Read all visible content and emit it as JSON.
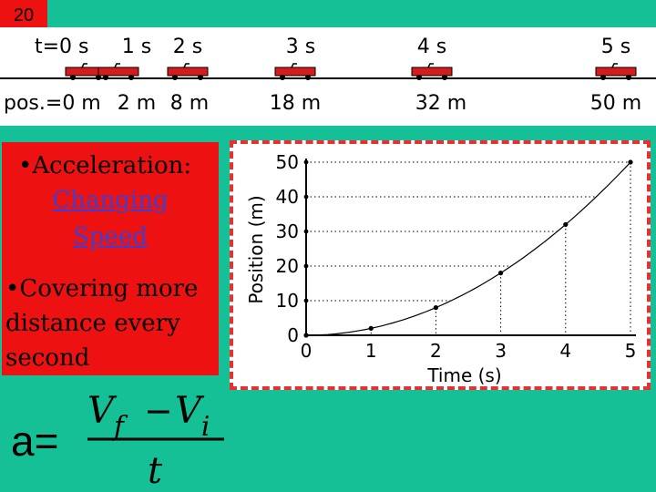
{
  "slide_number": "20",
  "top_strip": {
    "time_labels": [
      "t=0 s",
      "1 s",
      "2 s",
      "3 s",
      "4 s",
      "5 s"
    ],
    "position_labels": [
      "pos.=0 m",
      "2 m",
      "8 m",
      "18 m",
      "32 m",
      "50 m"
    ],
    "car_color": "#d41c1c"
  },
  "left_box": {
    "bullet_1_marker": "•",
    "bullet_1_text": "Acceleration:",
    "link_line_1": "Changing",
    "link_line_2": "Speed",
    "bullet_2_marker": "•",
    "bullet_2_text": "Covering more distance every second"
  },
  "chart_data": {
    "type": "scatter",
    "title": "",
    "xlabel": "Time (s)",
    "ylabel": "Position (m)",
    "x_ticks": [
      "0",
      "1",
      "2",
      "3",
      "4",
      "5"
    ],
    "y_ticks": [
      "0",
      "10",
      "20",
      "30",
      "40",
      "50"
    ],
    "xlim": [
      0,
      5
    ],
    "ylim": [
      0,
      50
    ],
    "x": [
      0,
      1,
      2,
      3,
      4,
      5
    ],
    "y": [
      0,
      2,
      8,
      18,
      32,
      50
    ],
    "curve": "smooth-through-points",
    "dotted_guides": true
  },
  "formula": {
    "lhs": "a=",
    "numerator_v1": "V",
    "numerator_sub1": "f",
    "numerator_minus": "−",
    "numerator_v2": "V",
    "numerator_sub2": "i",
    "denominator": "t"
  },
  "colors": {
    "background": "#16c096",
    "red_box": "#ee1111",
    "link": "#3f3fcf",
    "frame_border": "#e83030"
  }
}
